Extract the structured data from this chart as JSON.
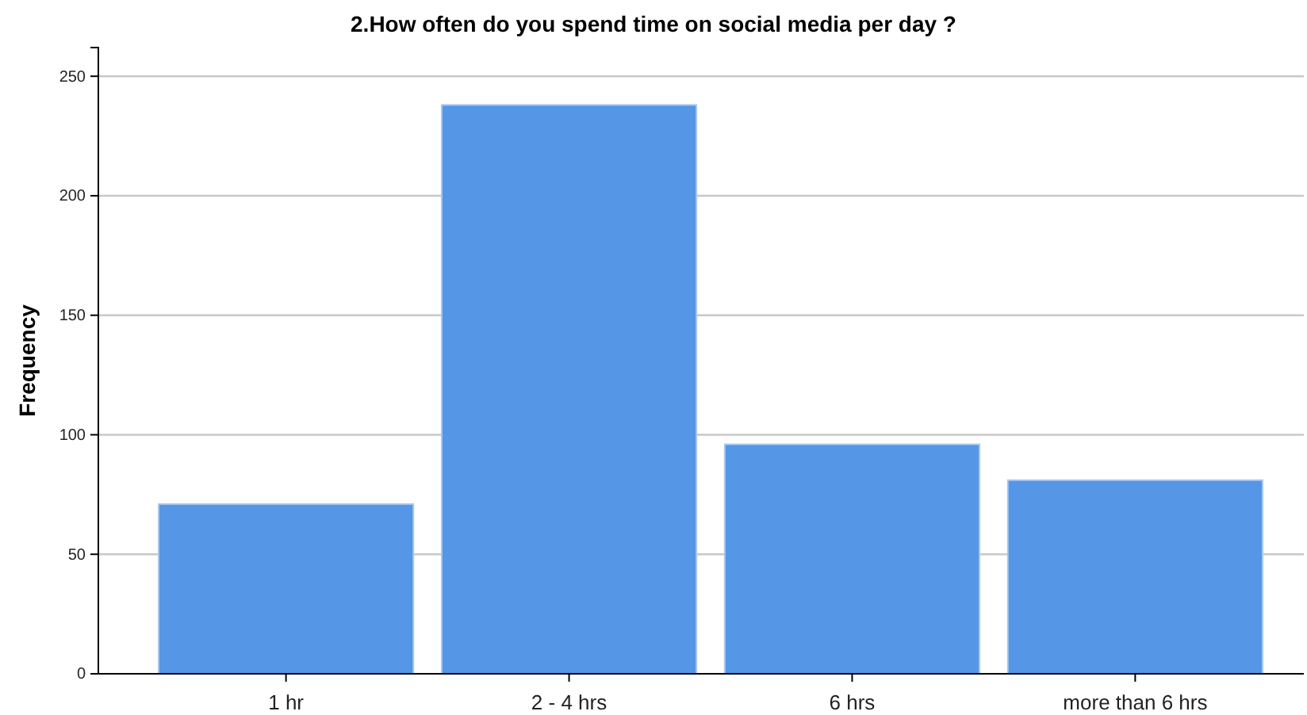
{
  "chart_data": {
    "type": "bar",
    "title": "2.How often do you spend time on social media per day ?",
    "ylabel": "Frequency",
    "categories": [
      "1 hr",
      "2 - 4 hrs",
      "6 hrs",
      "more than 6 hrs"
    ],
    "values": [
      71,
      238,
      96,
      81
    ],
    "color": "#5596e6",
    "ylim": [
      0,
      262
    ],
    "yticks": [
      0,
      50,
      100,
      150,
      200,
      250
    ],
    "grid": "y"
  }
}
